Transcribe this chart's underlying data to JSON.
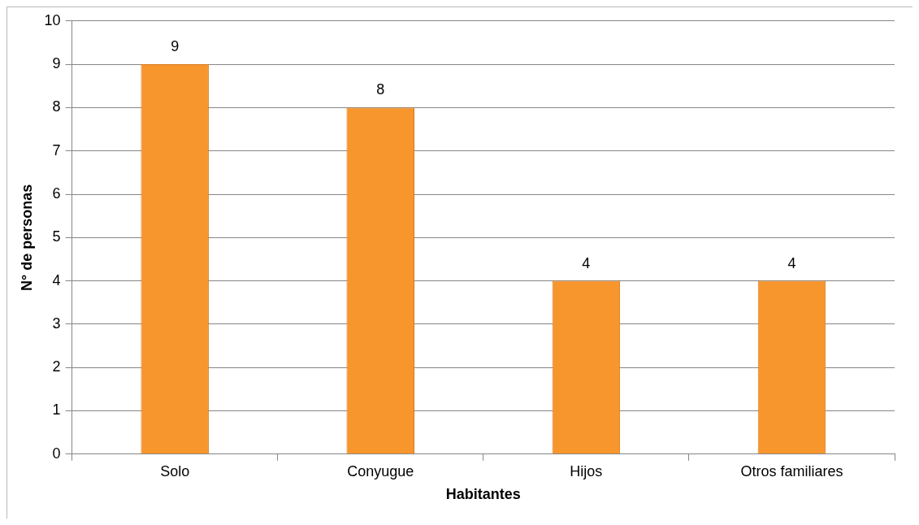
{
  "chart_data": {
    "type": "bar",
    "xlabel": "Habitantes",
    "ylabel": "N° de personas",
    "categories": [
      "Solo",
      "Conyugue",
      "Hijos",
      "Otros familiares"
    ],
    "values": [
      9,
      8,
      4,
      4
    ],
    "color": "#f7962d",
    "ylim": [
      0,
      10
    ],
    "yticks": [
      0,
      1,
      2,
      3,
      4,
      5,
      6,
      7,
      8,
      9,
      10
    ],
    "grid": "y",
    "legend": false,
    "data_labels": true
  }
}
